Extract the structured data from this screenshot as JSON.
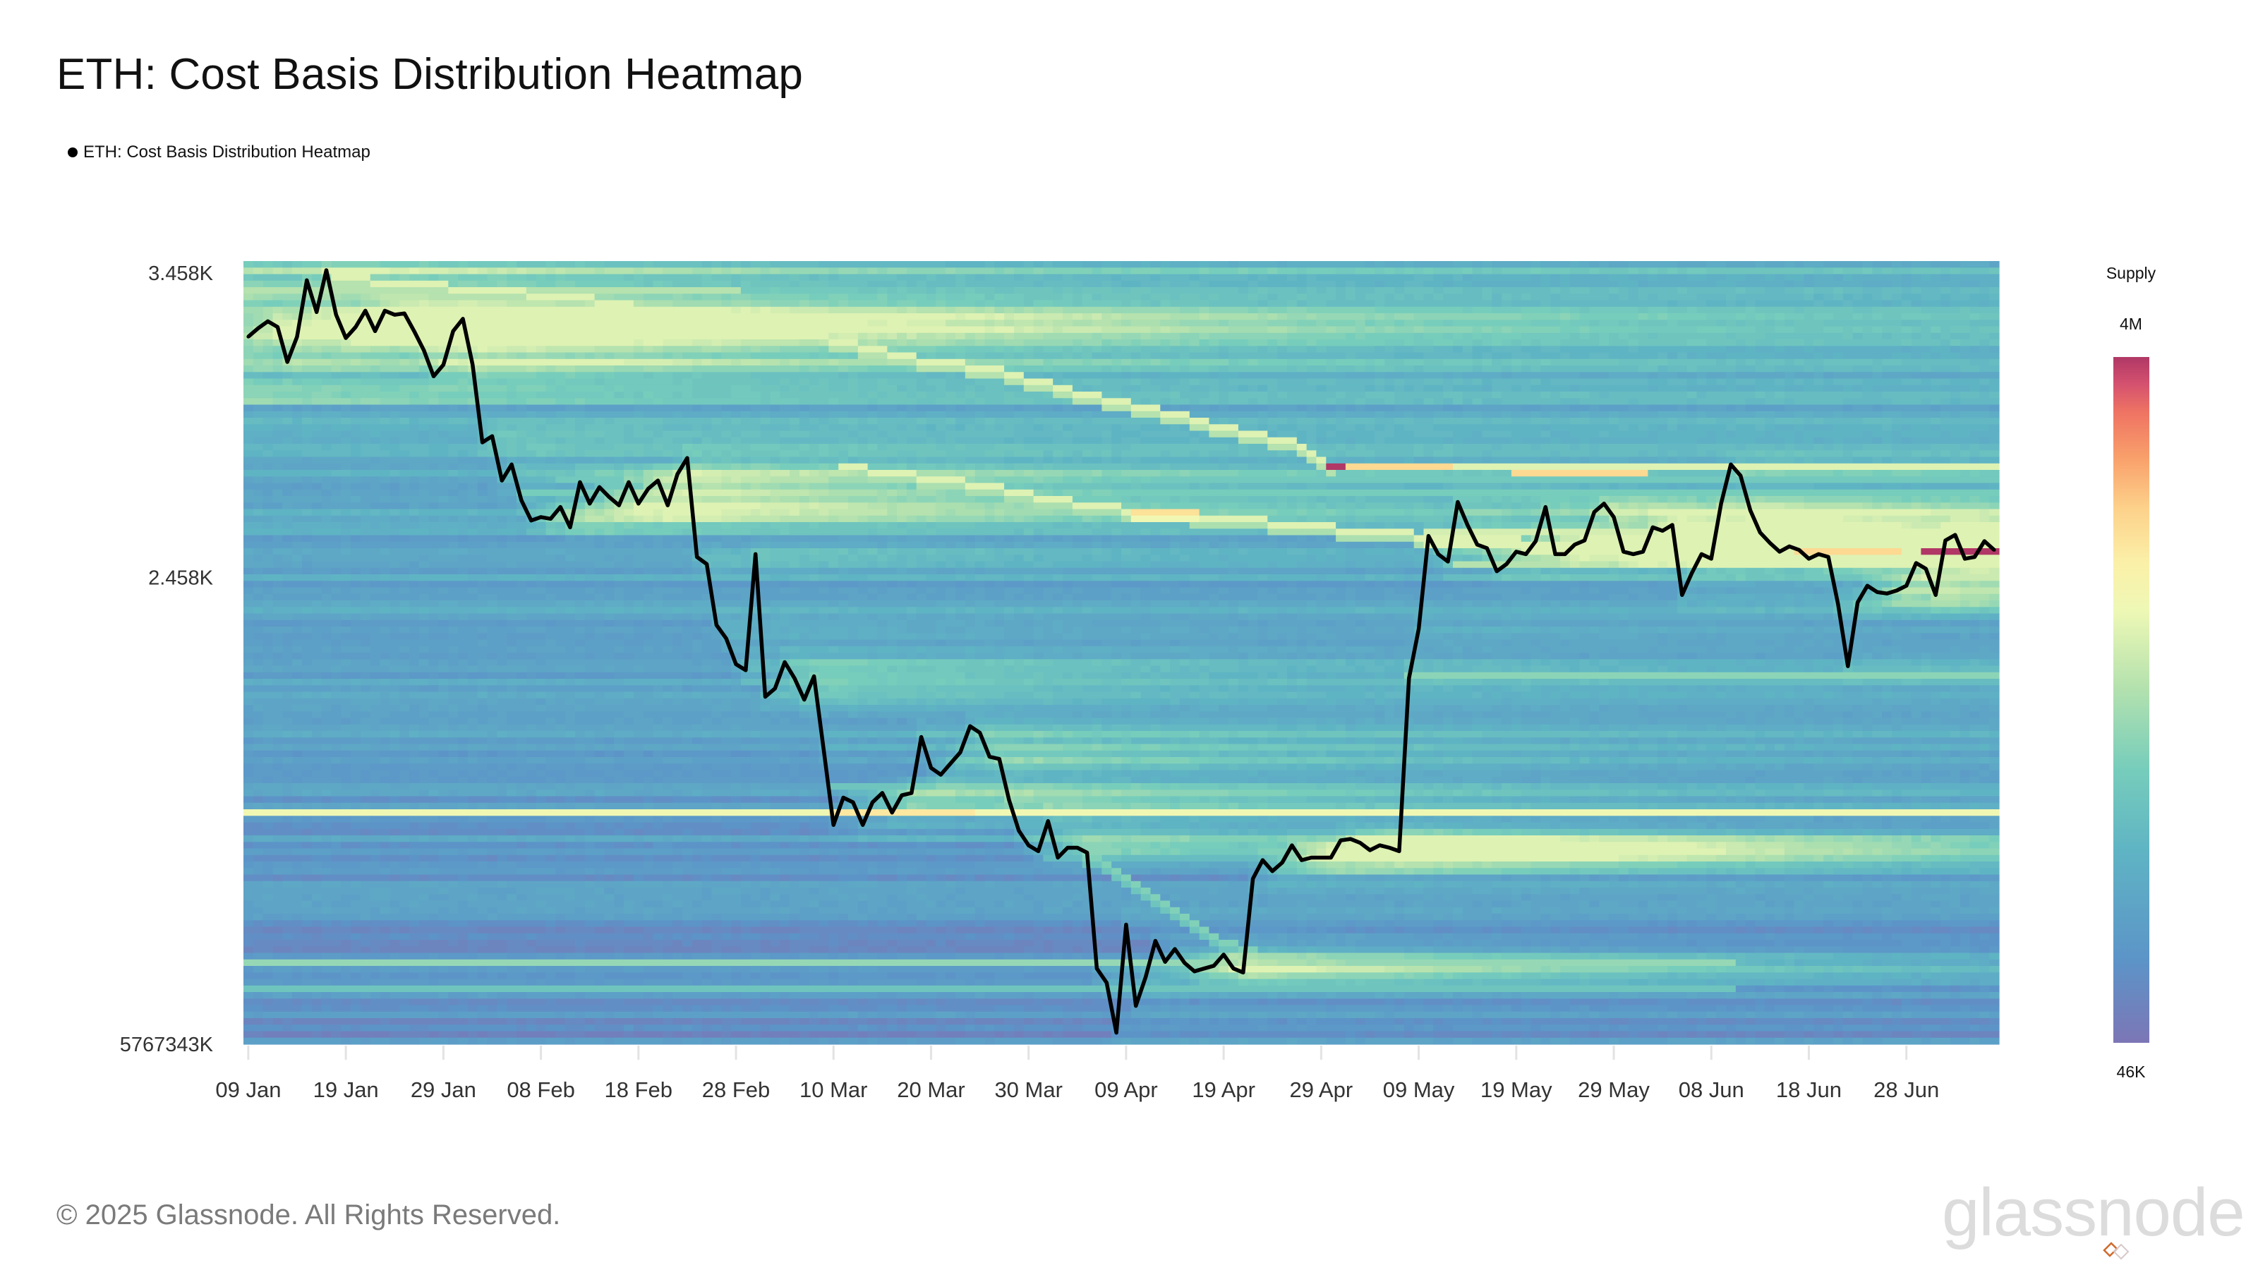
{
  "title": "ETH: Cost Basis Distribution Heatmap",
  "legend": {
    "label": "ETH: Cost Basis Distribution Heatmap",
    "color": "#000000"
  },
  "footer": "© 2025 Glassnode. All Rights Reserved.",
  "logo": "glassnode",
  "colorbar": {
    "title": "Supply",
    "max_label": "4M",
    "min_label": "46K"
  },
  "chart_data": {
    "type": "heatmap",
    "title": "ETH: Cost Basis Distribution Heatmap",
    "y_scale": "log",
    "ylim": [
      1456,
      3505
    ],
    "y_ticks": [
      {
        "value": 3458,
        "label": "3.458K"
      },
      {
        "value": 2458,
        "label": "2.458K"
      },
      {
        "value": null,
        "label": "5767343K"
      }
    ],
    "x_ticks": [
      "09 Jan",
      "19 Jan",
      "29 Jan",
      "08 Feb",
      "18 Feb",
      "28 Feb",
      "10 Mar",
      "20 Mar",
      "30 Mar",
      "09 Apr",
      "19 Apr",
      "29 Apr",
      "09 May",
      "19 May",
      "29 May",
      "08 Jun",
      "18 Jun",
      "28 Jun"
    ],
    "grid": false,
    "colorscale": {
      "name": "Spectral",
      "label": "Supply",
      "min": 46000,
      "max": 4000000,
      "min_label": "46K",
      "max_label": "4M",
      "scale": "log",
      "colors": [
        "#7c76b6",
        "#5c94c8",
        "#5fb4c4",
        "#77cdbb",
        "#b5e2ae",
        "#eef8b5",
        "#fbf0a8",
        "#fdd18a",
        "#f9a26b",
        "#ef7363",
        "#d5526f",
        "#b03766"
      ]
    },
    "price_series": {
      "name": "ETH: Cost Basis Distribution Heatmap",
      "color": "#000000",
      "months": [
        {
          "month": "Jan",
          "start_day": 9,
          "values": [
            3220,
            3250,
            3276,
            3255,
            3130,
            3220,
            3430,
            3310,
            3469,
            3300,
            3215,
            3255,
            3315,
            3240,
            3315,
            3300,
            3305,
            3240,
            3171,
            3080,
            3120,
            3240,
            3285
          ]
        },
        {
          "month": "Feb",
          "start_day": 1,
          "values": [
            3120,
            2860,
            2880,
            2740,
            2790,
            2680,
            2620,
            2630,
            2625,
            2660,
            2600,
            2735,
            2670,
            2720,
            2690,
            2665,
            2735,
            2670,
            2715,
            2740,
            2665,
            2760,
            2810,
            2515,
            2495,
            2330,
            2295,
            2230
          ]
        },
        {
          "month": "Mar",
          "start_day": 1,
          "values": [
            2215,
            2523,
            2150,
            2170,
            2235,
            2195,
            2143,
            2200,
            2025,
            1862,
            1920,
            1910,
            1862,
            1910,
            1930,
            1888,
            1925,
            1930,
            2055,
            1985,
            1970,
            1995,
            2020,
            2080,
            2065,
            2010,
            2005,
            1915,
            1850,
            1820,
            1808
          ]
        },
        {
          "month": "Apr",
          "start_day": 1,
          "values": [
            1870,
            1795,
            1815,
            1815,
            1805,
            1585,
            1560,
            1475,
            1665,
            1520,
            1570,
            1635,
            1597,
            1620,
            1595,
            1580,
            1585,
            1590,
            1610,
            1585,
            1578,
            1753,
            1790,
            1768,
            1785,
            1820,
            1790,
            1795,
            1795,
            1795
          ]
        },
        {
          "month": "May",
          "start_day": 1,
          "values": [
            1830,
            1833,
            1825,
            1810,
            1820,
            1815,
            1808,
            2195,
            2320,
            2575,
            2523,
            2502,
            2675,
            2607,
            2550,
            2540,
            2475,
            2495,
            2530,
            2523,
            2560,
            2660,
            2523,
            2523,
            2550,
            2562,
            2645,
            2670,
            2630,
            2530,
            2523
          ]
        },
        {
          "month": "Jun",
          "start_day": 1,
          "values": [
            2530,
            2600,
            2590,
            2607,
            2410,
            2470,
            2523,
            2510,
            2670,
            2790,
            2755,
            2650,
            2585,
            2555,
            2530,
            2545,
            2535,
            2510,
            2523,
            2515,
            2385,
            2225,
            2390,
            2435,
            2418,
            2414,
            2422,
            2435,
            2498,
            2482
          ]
        },
        {
          "month": "Jul",
          "start_day": 1,
          "values": [
            2410,
            2562,
            2578,
            2510,
            2515,
            2560,
            2535
          ]
        }
      ]
    },
    "supply_bands": [
      {
        "price": 1890,
        "from": "09 Jan",
        "to": "07 Jul",
        "supply": 800000
      },
      {
        "price": 1890,
        "from": "10 Mar",
        "to": "24 Mar",
        "supply": 1100000
      },
      {
        "price": 1597,
        "from": "09 Jan",
        "to": "10 Jun",
        "supply": 350000
      },
      {
        "price": 1546,
        "from": "09 Jan",
        "to": "10 Jun",
        "supply": 220000
      },
      {
        "price": 2200,
        "from": "08 May",
        "to": "07 Jul",
        "supply": 320000
      },
      {
        "price": 2185,
        "from": "01 Mar",
        "to": "07 Jul",
        "supply": 200000
      },
      {
        "price": 1940,
        "from": "10 Mar",
        "to": "28 Apr",
        "supply": 230000
      },
      {
        "price": 1790,
        "from": "01 Apr",
        "to": "07 Jul",
        "supply": 200000
      },
      {
        "price": 2700,
        "from": "06 Feb",
        "to": "07 Jul",
        "supply": 280000
      },
      {
        "price": 2740,
        "from": "10 Feb",
        "to": "07 Jul",
        "supply": 250000
      },
      {
        "price": 2785,
        "from": "30 Apr",
        "to": "07 Jul",
        "supply": 650000
      },
      {
        "price": 2785,
        "from": "30 Apr",
        "to": "12 May",
        "supply": 1400000
      },
      {
        "price": 2790,
        "from": "30 Apr",
        "to": "01 May",
        "supply": 4000000
      },
      {
        "price": 2760,
        "from": "19 May",
        "to": "01 Jun",
        "supply": 1400000
      },
      {
        "price": 2595,
        "from": "10 May",
        "to": "07 Jul",
        "supply": 620000
      },
      {
        "price": 2555,
        "from": "10 May",
        "to": "07 Jul",
        "supply": 700000
      },
      {
        "price": 2525,
        "from": "17 Jun",
        "to": "27 Jun",
        "supply": 1400000
      },
      {
        "price": 2525,
        "from": "30 Jun",
        "to": "07 Jul",
        "supply": 4000000
      },
      {
        "price": 2490,
        "from": "13 May",
        "to": "07 Jul",
        "supply": 450000
      },
      {
        "price": 3400,
        "from": "09 Jan",
        "to": "28 Feb",
        "supply": 450000
      },
      {
        "price": 3300,
        "from": "09 Jan",
        "to": "20 Feb",
        "supply": 350000
      }
    ],
    "supply_ridges": [
      {
        "supply": 700000,
        "points": [
          [
            "18 Jan",
            3440
          ],
          [
            "28 Jan",
            3410
          ],
          [
            "12 Feb",
            3360
          ],
          [
            "23 Feb",
            3300
          ],
          [
            "04 Mar",
            3250
          ],
          [
            "11 Mar",
            3200
          ],
          [
            "19 Mar",
            3140
          ],
          [
            "28 Mar",
            3090
          ],
          [
            "06 Apr",
            3010
          ],
          [
            "13 Apr",
            2960
          ],
          [
            "20 Apr",
            2900
          ],
          [
            "27 Apr",
            2850
          ],
          [
            "30 Apr",
            2790
          ]
        ]
      },
      {
        "supply": 650000,
        "points": [
          [
            "11 Mar",
            2783
          ],
          [
            "22 Mar",
            2740
          ],
          [
            "04 Apr",
            2670
          ],
          [
            "13 Apr",
            2640
          ],
          [
            "20 Apr",
            2625
          ],
          [
            "29 Apr",
            2600
          ],
          [
            "07 May",
            2580
          ],
          [
            "19 May",
            2560
          ]
        ]
      },
      {
        "supply": 1300000,
        "points": [
          [
            "10 Apr",
            2645
          ],
          [
            "16 Apr",
            2640
          ]
        ]
      },
      {
        "supply": 300000,
        "points": [
          [
            "05 Apr",
            1800
          ],
          [
            "12 Apr",
            1720
          ],
          [
            "17 Apr",
            1650
          ],
          [
            "23 Apr",
            1610
          ]
        ]
      }
    ]
  }
}
